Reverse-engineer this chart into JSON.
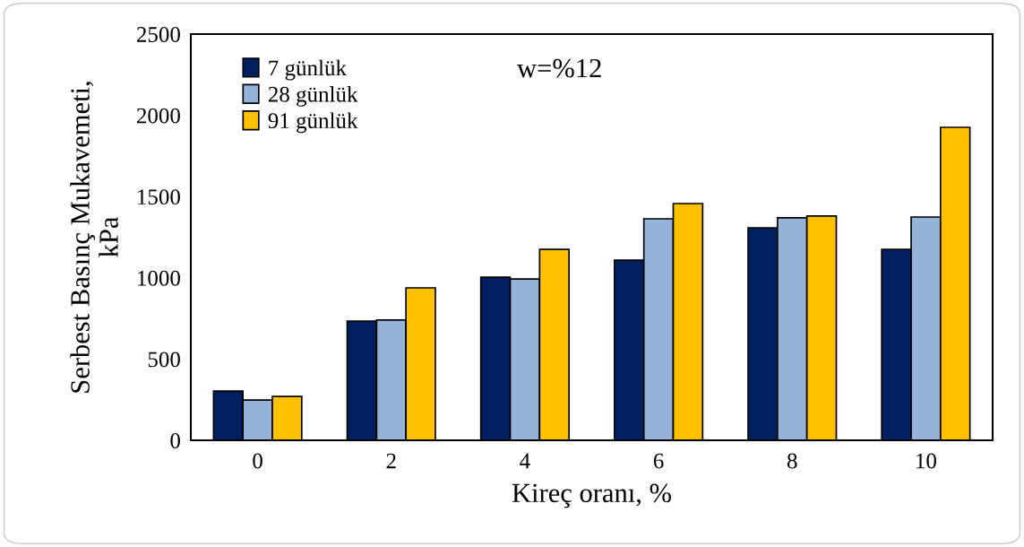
{
  "chart_data": {
    "type": "bar",
    "xlabel": "Kireç oranı, %",
    "ylabel": "Serbest Basınç Mukavemeti,\nkPa",
    "categories": [
      "0",
      "2",
      "4",
      "6",
      "8",
      "10"
    ],
    "series": [
      {
        "name": "7 günlük",
        "color": "#002060",
        "values": [
          303,
          734,
          1004,
          1109,
          1308,
          1175
        ]
      },
      {
        "name": "28 günlük",
        "color": "#95b3d7",
        "values": [
          248,
          740,
          993,
          1363,
          1369,
          1374
        ]
      },
      {
        "name": "91 günlük",
        "color": "#ffc000",
        "values": [
          270,
          938,
          1175,
          1457,
          1380,
          1926
        ]
      }
    ],
    "ylim": [
      0,
      2500
    ],
    "yticks": [
      0,
      500,
      1000,
      1500,
      2000,
      2500
    ],
    "grid": false,
    "legend": "top left",
    "annotations": [
      "w=%12"
    ]
  }
}
